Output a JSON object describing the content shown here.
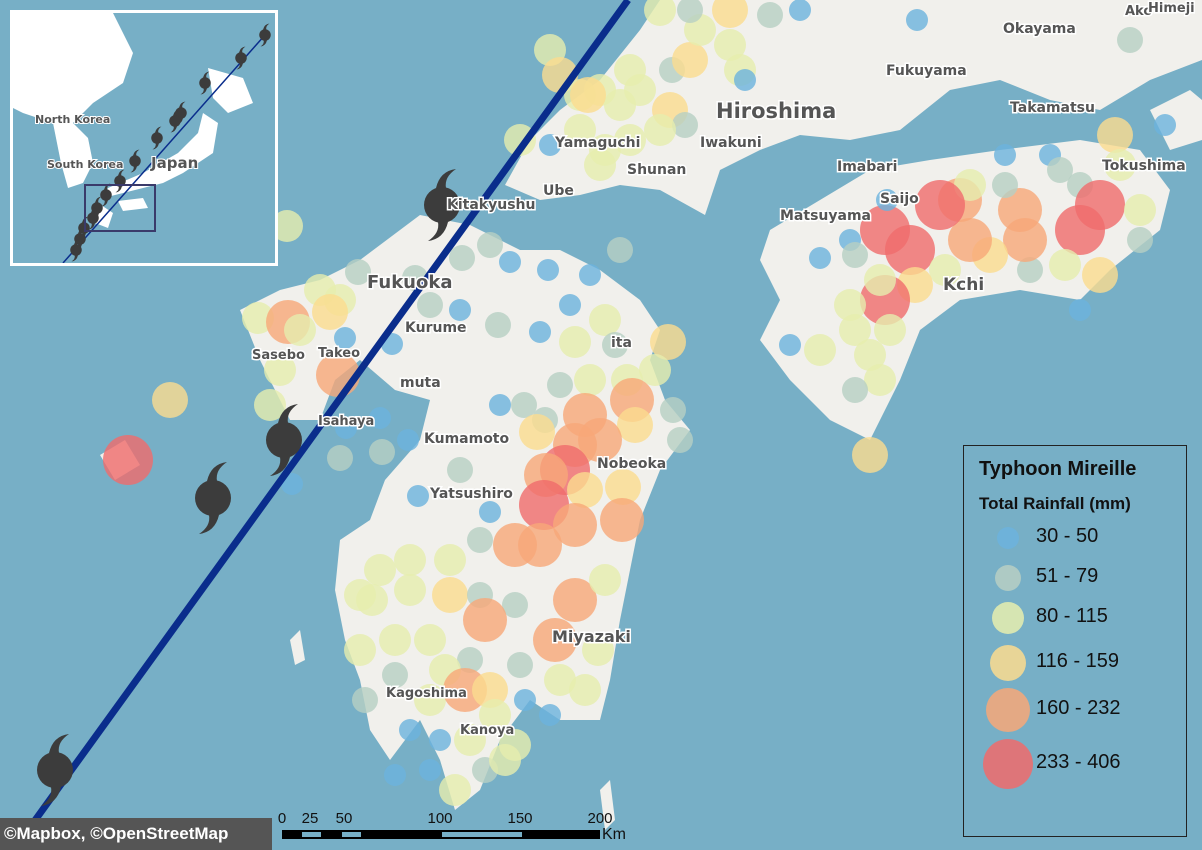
{
  "map": {
    "places": [
      "Fukuoka",
      "Kitakyushu",
      "Kurume",
      "Sasebo",
      "Takeo",
      "muta",
      "Isahaya",
      "Kumamoto",
      "Yatsushiro",
      "Nobeoka",
      "ita",
      "Miyazaki",
      "Kagoshima",
      "Kanoya",
      "Yamaguchi",
      "Shunan",
      "Ube",
      "Iwakuni",
      "Hiroshima",
      "Fukuyama",
      "Okayama",
      "Ako",
      "Himeji",
      "Takamatsu",
      "Imabari",
      "Saijo",
      "Matsuyama",
      "Tokushima",
      "Kchi"
    ],
    "colors": {
      "sea": "#77afc6",
      "land": "#f1f0ec",
      "track": "#0a2d8c",
      "typhoon": "#3c3c3c"
    }
  },
  "inset": {
    "labels": [
      "North Korea",
      "South Korea",
      "Japan"
    ]
  },
  "legend": {
    "title": "Typhoon Mireille",
    "subtitle": "Total Rainfall (mm)",
    "classes": [
      {
        "label": "30 - 50",
        "color": "#6cb3dd"
      },
      {
        "label": "51 - 79",
        "color": "#b7cfc3"
      },
      {
        "label": "80 - 115",
        "color": "#e6eeae"
      },
      {
        "label": "116 - 159",
        "color": "#fbdc8e"
      },
      {
        "label": "160 - 232",
        "color": "#f7a878"
      },
      {
        "label": "233 - 406",
        "color": "#f06b6b"
      }
    ]
  },
  "credit": "©Mapbox, ©OpenStreetMap",
  "scale_bar": {
    "ticks": [
      "0",
      "25",
      "50",
      "100",
      "150",
      "200"
    ],
    "unit": "Km"
  }
}
